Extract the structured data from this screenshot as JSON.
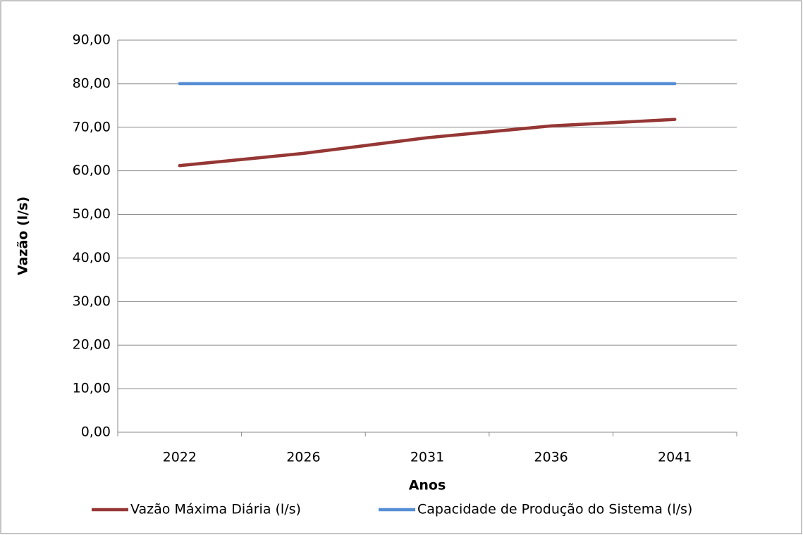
{
  "chart_data": {
    "type": "line",
    "categories": [
      "2022",
      "2026",
      "2031",
      "2036",
      "2041"
    ],
    "series": [
      {
        "name": "Vazão Máxima Diária (l/s)",
        "color": "#953735",
        "values": [
          61.2,
          64.0,
          67.6,
          70.3,
          71.8
        ]
      },
      {
        "name": "Capacidade de Produção do Sistema (l/s)",
        "color": "#558ed5",
        "values": [
          80,
          80,
          80,
          80,
          80
        ]
      }
    ],
    "x_label": "Anos",
    "y_label": "Vazão (l/s)",
    "ylim": [
      0,
      90
    ],
    "yticks": [
      {
        "value": 0,
        "label": "0,00"
      },
      {
        "value": 10,
        "label": "10,00"
      },
      {
        "value": 20,
        "label": "20,00"
      },
      {
        "value": 30,
        "label": "30,00"
      },
      {
        "value": 40,
        "label": "40,00"
      },
      {
        "value": 50,
        "label": "50,00"
      },
      {
        "value": 60,
        "label": "60,00"
      },
      {
        "value": 70,
        "label": "70,00"
      },
      {
        "value": 80,
        "label": "80,00"
      },
      {
        "value": 90,
        "label": "90,00"
      }
    ],
    "grid": true,
    "legend": "bottom"
  }
}
